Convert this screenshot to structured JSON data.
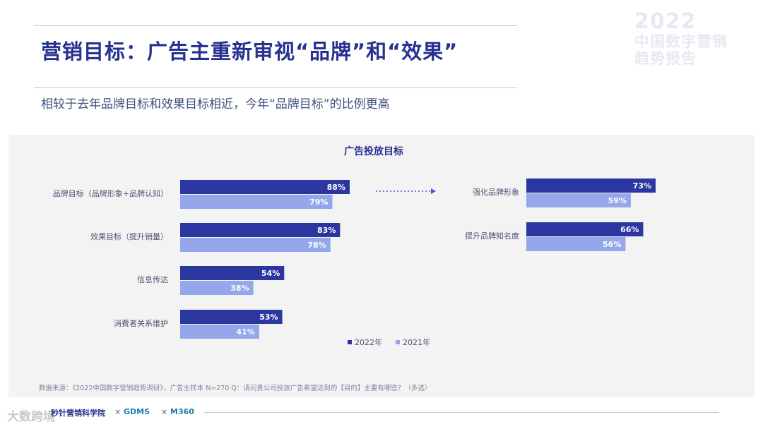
{
  "header": {
    "title": "营销目标：广告主重新审视“品牌”和“效果”",
    "subtitle": "相较于去年品牌目标和效果目标相近，今年“品牌目标”的比例更高",
    "brand_year": "2022",
    "brand_line1": "中国数字营销",
    "brand_line2": "趋势报告"
  },
  "colors": {
    "title": "#27318f",
    "series_2022": "#2b36a0",
    "series_2021": "#94a7ea",
    "arrow": "#3b5bd9"
  },
  "chart_data": [
    {
      "type": "bar",
      "orientation": "horizontal",
      "title": "广告投放目标",
      "categories": [
        "品牌目标（品牌形象+品牌认知）",
        "效果目标（提升销量）",
        "信息传达",
        "消费者关系维护"
      ],
      "series": [
        {
          "name": "2022年",
          "values": [
            88,
            83,
            54,
            53
          ]
        },
        {
          "name": "2021年",
          "values": [
            79,
            78,
            38,
            41
          ]
        }
      ],
      "unit": "%",
      "xlim": [
        0,
        100
      ],
      "legend": "bottom"
    },
    {
      "type": "bar",
      "orientation": "horizontal",
      "categories": [
        "强化品牌形象",
        "提升品牌知名度"
      ],
      "series": [
        {
          "name": "2022年",
          "values": [
            73,
            66
          ]
        },
        {
          "name": "2021年",
          "values": [
            59,
            56
          ]
        }
      ],
      "unit": "%",
      "xlim": [
        0,
        100
      ]
    }
  ],
  "source": "数据来源：《2022中国数字营销趋势调研》，广告主样本 N=270    Q：请问贵公司投放广告希望达到的【目的】主要有哪些？（多选）",
  "footer": {
    "logo_left": "秒针营销科学院",
    "logo_mid": "GDMS",
    "logo_right": "M360",
    "separator": "×",
    "watermark": "大数跨境"
  }
}
